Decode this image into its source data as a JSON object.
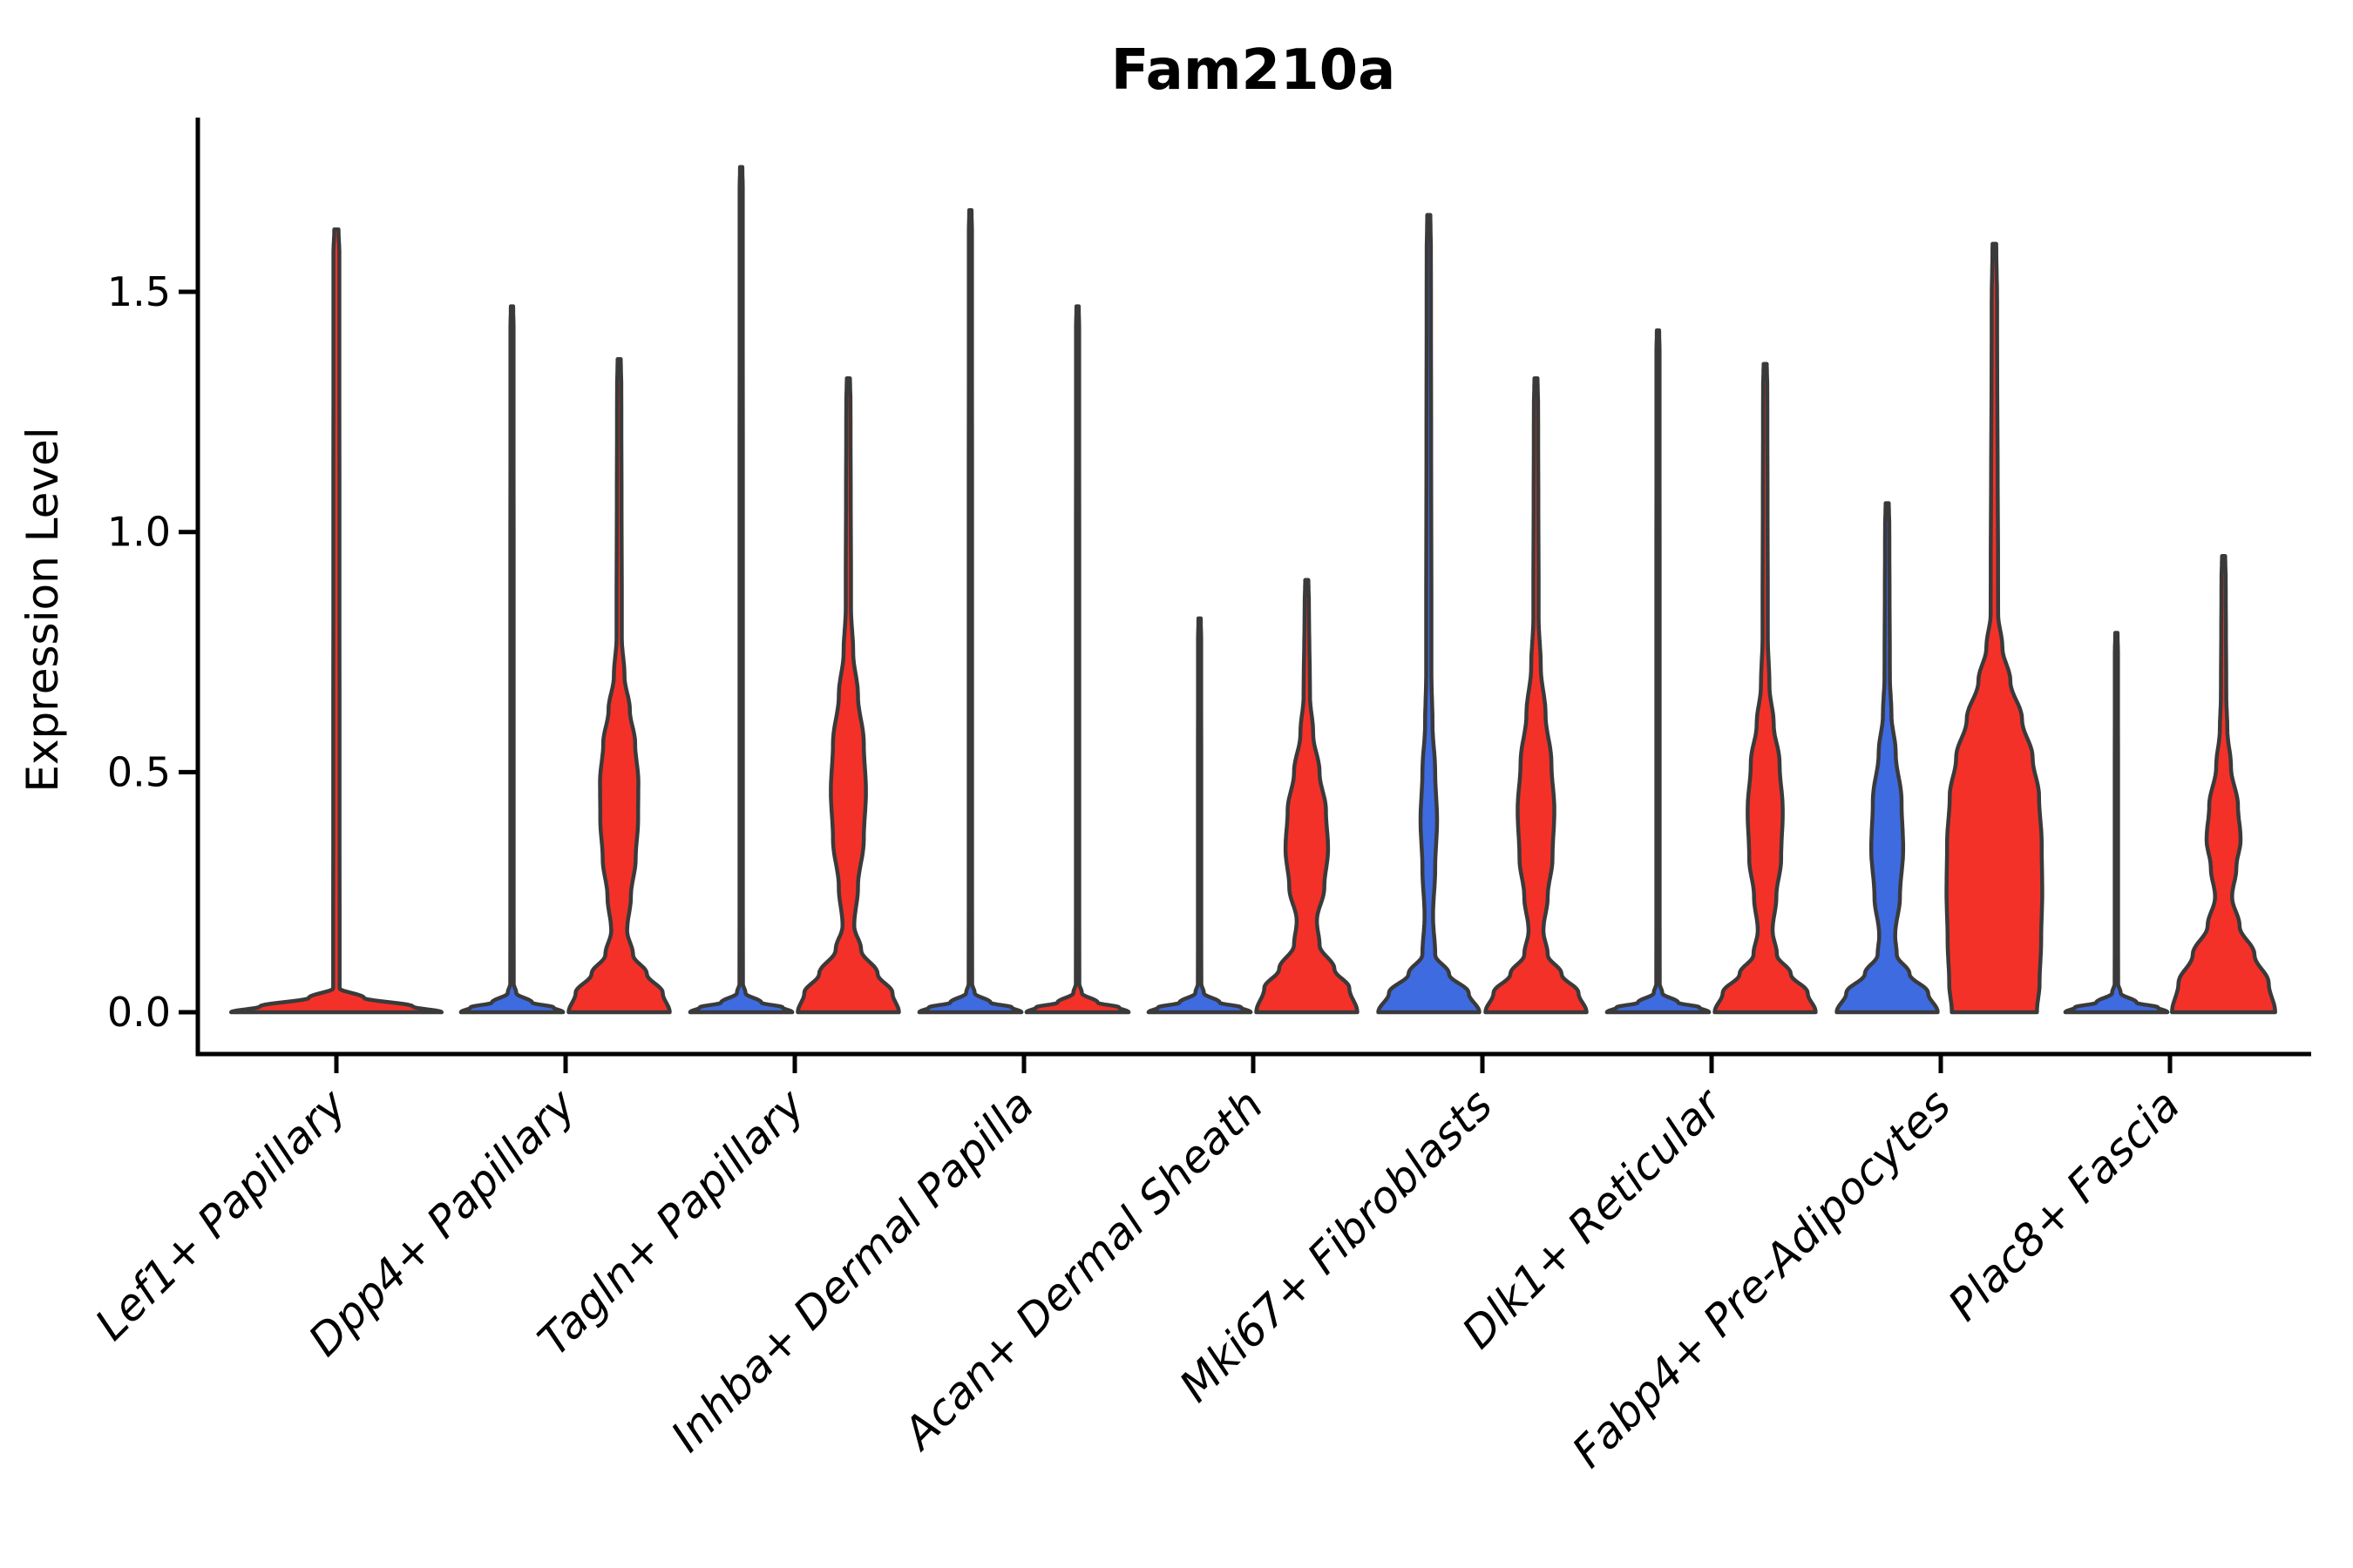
{
  "title": "Fam210a",
  "axes": {
    "ylabel": "Expression Level",
    "ytick_labels": [
      "0.0",
      "0.5",
      "1.0",
      "1.5"
    ]
  },
  "chart_data": {
    "type": "violin",
    "title": "Fam210a",
    "xlabel": "",
    "ylabel": "Expression Level",
    "ylim": [
      -0.09,
      1.86
    ],
    "yticks": [
      0.0,
      0.5,
      1.0,
      1.5
    ],
    "grid": false,
    "legend": "none",
    "colors": {
      "red": "#F33129",
      "blue": "#3F6BE1",
      "outline": "#3A3A3A",
      "axis": "#000000",
      "background": "#FFFFFF"
    },
    "categories": [
      "Lef1+ Papillary",
      "Dpp4+ Papillary",
      "Tagln+ Papillary",
      "Inhba+ Dermal Papilla",
      "Acan+ Dermal Sheath",
      "Mki67+ Fibroblasts",
      "Dlk1+ Reticular",
      "Fabp4+ Pre-Adipocytes",
      "Plac8+ Fascia"
    ],
    "violins": [
      {
        "category_index": 0,
        "category": "Lef1+ Papillary",
        "side": "center",
        "color": "red",
        "width_scale": 2,
        "max_value": 1.63,
        "profile": [
          [
            0,
            0.99
          ],
          [
            0.012,
            0.72
          ],
          [
            0.03,
            0.26
          ],
          [
            0.05,
            0.03
          ],
          [
            1.58,
            0.028
          ],
          [
            1.63,
            0.02
          ]
        ]
      },
      {
        "category_index": 1,
        "category": "Dpp4+ Papillary",
        "side": "left",
        "color": "blue",
        "width_scale": 1,
        "max_value": 1.47,
        "profile": [
          [
            0,
            0.96
          ],
          [
            0.01,
            0.78
          ],
          [
            0.02,
            0.38
          ],
          [
            0.04,
            0.08
          ],
          [
            0.06,
            0.032
          ],
          [
            1.42,
            0.03
          ],
          [
            1.47,
            0.022
          ]
        ]
      },
      {
        "category_index": 1,
        "category": "Dpp4+ Papillary",
        "side": "right",
        "color": "red",
        "width_scale": 1,
        "max_value": 1.36,
        "profile": [
          [
            0,
            0.95
          ],
          [
            0.04,
            0.82
          ],
          [
            0.08,
            0.52
          ],
          [
            0.12,
            0.26
          ],
          [
            0.17,
            0.15
          ],
          [
            0.24,
            0.22
          ],
          [
            0.32,
            0.31
          ],
          [
            0.4,
            0.355
          ],
          [
            0.48,
            0.36
          ],
          [
            0.56,
            0.3
          ],
          [
            0.63,
            0.2
          ],
          [
            0.7,
            0.1
          ],
          [
            0.78,
            0.05
          ],
          [
            1.3,
            0.04
          ],
          [
            1.36,
            0.03
          ]
        ]
      },
      {
        "category_index": 2,
        "category": "Tagln+ Papillary",
        "side": "left",
        "color": "blue",
        "width_scale": 1,
        "max_value": 1.76,
        "profile": [
          [
            0,
            0.96
          ],
          [
            0.01,
            0.78
          ],
          [
            0.02,
            0.38
          ],
          [
            0.04,
            0.08
          ],
          [
            0.06,
            0.032
          ],
          [
            1.71,
            0.03
          ],
          [
            1.76,
            0.022
          ]
        ]
      },
      {
        "category_index": 2,
        "category": "Tagln+ Papillary",
        "side": "right",
        "color": "red",
        "width_scale": 1,
        "max_value": 1.32,
        "profile": [
          [
            0,
            0.95
          ],
          [
            0.04,
            0.83
          ],
          [
            0.08,
            0.55
          ],
          [
            0.13,
            0.24
          ],
          [
            0.18,
            0.11
          ],
          [
            0.26,
            0.18
          ],
          [
            0.36,
            0.29
          ],
          [
            0.46,
            0.33
          ],
          [
            0.56,
            0.29
          ],
          [
            0.66,
            0.18
          ],
          [
            0.75,
            0.09
          ],
          [
            0.84,
            0.05
          ],
          [
            1.27,
            0.04
          ],
          [
            1.32,
            0.03
          ]
        ]
      },
      {
        "category_index": 3,
        "category": "Inhba+ Dermal Papilla",
        "side": "left",
        "color": "blue",
        "width_scale": 1,
        "max_value": 1.67,
        "profile": [
          [
            0,
            0.96
          ],
          [
            0.01,
            0.78
          ],
          [
            0.02,
            0.38
          ],
          [
            0.04,
            0.08
          ],
          [
            0.06,
            0.032
          ],
          [
            1.62,
            0.03
          ],
          [
            1.67,
            0.022
          ]
        ]
      },
      {
        "category_index": 3,
        "category": "Inhba+ Dermal Papilla",
        "side": "right",
        "color": "red",
        "width_scale": 1,
        "max_value": 1.47,
        "profile": [
          [
            0,
            0.96
          ],
          [
            0.01,
            0.78
          ],
          [
            0.02,
            0.38
          ],
          [
            0.04,
            0.08
          ],
          [
            0.06,
            0.032
          ],
          [
            1.42,
            0.03
          ],
          [
            1.47,
            0.022
          ]
        ]
      },
      {
        "category_index": 4,
        "category": "Acan+ Dermal Sheath",
        "side": "left",
        "color": "blue",
        "width_scale": 1,
        "max_value": 0.82,
        "profile": [
          [
            0,
            0.96
          ],
          [
            0.01,
            0.78
          ],
          [
            0.02,
            0.38
          ],
          [
            0.04,
            0.08
          ],
          [
            0.06,
            0.032
          ],
          [
            0.77,
            0.03
          ],
          [
            0.82,
            0.022
          ]
        ]
      },
      {
        "category_index": 4,
        "category": "Acan+ Dermal Sheath",
        "side": "right",
        "color": "red",
        "width_scale": 1,
        "max_value": 0.9,
        "profile": [
          [
            0,
            0.95
          ],
          [
            0.05,
            0.8
          ],
          [
            0.09,
            0.52
          ],
          [
            0.14,
            0.24
          ],
          [
            0.19,
            0.19
          ],
          [
            0.26,
            0.33
          ],
          [
            0.34,
            0.4
          ],
          [
            0.42,
            0.36
          ],
          [
            0.5,
            0.24
          ],
          [
            0.58,
            0.12
          ],
          [
            0.66,
            0.06
          ],
          [
            0.85,
            0.04
          ],
          [
            0.9,
            0.03
          ]
        ]
      },
      {
        "category_index": 5,
        "category": "Mki67+ Fibroblasts",
        "side": "left",
        "color": "blue",
        "width_scale": 1,
        "max_value": 1.66,
        "profile": [
          [
            0,
            0.95
          ],
          [
            0.04,
            0.75
          ],
          [
            0.08,
            0.38
          ],
          [
            0.12,
            0.12
          ],
          [
            0.2,
            0.08
          ],
          [
            0.3,
            0.12
          ],
          [
            0.4,
            0.155
          ],
          [
            0.5,
            0.12
          ],
          [
            0.6,
            0.07
          ],
          [
            0.7,
            0.05
          ],
          [
            1.58,
            0.04
          ],
          [
            1.66,
            0.03
          ]
        ]
      },
      {
        "category_index": 5,
        "category": "Mki67+ Fibroblasts",
        "side": "right",
        "color": "red",
        "width_scale": 1,
        "max_value": 1.32,
        "profile": [
          [
            0,
            0.95
          ],
          [
            0.04,
            0.8
          ],
          [
            0.08,
            0.48
          ],
          [
            0.12,
            0.22
          ],
          [
            0.17,
            0.14
          ],
          [
            0.24,
            0.22
          ],
          [
            0.32,
            0.31
          ],
          [
            0.42,
            0.345
          ],
          [
            0.52,
            0.29
          ],
          [
            0.62,
            0.18
          ],
          [
            0.72,
            0.09
          ],
          [
            0.82,
            0.05
          ],
          [
            1.26,
            0.04
          ],
          [
            1.32,
            0.03
          ]
        ]
      },
      {
        "category_index": 6,
        "category": "Dlk1+ Reticular",
        "side": "left",
        "color": "blue",
        "width_scale": 1,
        "max_value": 1.42,
        "profile": [
          [
            0,
            0.96
          ],
          [
            0.01,
            0.78
          ],
          [
            0.02,
            0.38
          ],
          [
            0.04,
            0.08
          ],
          [
            0.06,
            0.032
          ],
          [
            1.37,
            0.03
          ],
          [
            1.42,
            0.022
          ]
        ]
      },
      {
        "category_index": 6,
        "category": "Dlk1+ Reticular",
        "side": "right",
        "color": "red",
        "width_scale": 1,
        "max_value": 1.35,
        "profile": [
          [
            0,
            0.95
          ],
          [
            0.04,
            0.8
          ],
          [
            0.08,
            0.48
          ],
          [
            0.12,
            0.22
          ],
          [
            0.17,
            0.14
          ],
          [
            0.24,
            0.21
          ],
          [
            0.32,
            0.3
          ],
          [
            0.42,
            0.33
          ],
          [
            0.52,
            0.27
          ],
          [
            0.6,
            0.16
          ],
          [
            0.68,
            0.08
          ],
          [
            0.78,
            0.05
          ],
          [
            1.3,
            0.04
          ],
          [
            1.35,
            0.03
          ]
        ]
      },
      {
        "category_index": 7,
        "category": "Fabp4+ Pre-Adipocytes",
        "side": "left",
        "color": "blue",
        "width_scale": 1,
        "max_value": 1.06,
        "profile": [
          [
            0,
            0.95
          ],
          [
            0.04,
            0.77
          ],
          [
            0.08,
            0.42
          ],
          [
            0.12,
            0.18
          ],
          [
            0.16,
            0.15
          ],
          [
            0.24,
            0.24
          ],
          [
            0.34,
            0.3
          ],
          [
            0.44,
            0.27
          ],
          [
            0.54,
            0.16
          ],
          [
            0.62,
            0.08
          ],
          [
            0.7,
            0.05
          ],
          [
            1.01,
            0.04
          ],
          [
            1.06,
            0.03
          ]
        ]
      },
      {
        "category_index": 7,
        "category": "Fabp4+ Pre-Adipocytes",
        "side": "right",
        "color": "red",
        "width_scale": 1,
        "max_value": 1.6,
        "profile": [
          [
            0,
            0.8
          ],
          [
            0.06,
            0.85
          ],
          [
            0.15,
            0.88
          ],
          [
            0.25,
            0.9
          ],
          [
            0.35,
            0.89
          ],
          [
            0.45,
            0.84
          ],
          [
            0.53,
            0.72
          ],
          [
            0.61,
            0.52
          ],
          [
            0.69,
            0.3
          ],
          [
            0.76,
            0.15
          ],
          [
            0.83,
            0.07
          ],
          [
            1.48,
            0.05
          ],
          [
            1.6,
            0.035
          ]
        ]
      },
      {
        "category_index": 8,
        "category": "Plac8+ Fascia",
        "side": "left",
        "color": "blue",
        "width_scale": 1,
        "max_value": 0.79,
        "profile": [
          [
            0,
            0.96
          ],
          [
            0.01,
            0.78
          ],
          [
            0.02,
            0.38
          ],
          [
            0.04,
            0.08
          ],
          [
            0.06,
            0.032
          ],
          [
            0.74,
            0.03
          ],
          [
            0.79,
            0.022
          ]
        ]
      },
      {
        "category_index": 8,
        "category": "Plac8+ Fascia",
        "side": "right",
        "color": "red",
        "width_scale": 1,
        "max_value": 0.95,
        "profile": [
          [
            0,
            0.97
          ],
          [
            0.06,
            0.85
          ],
          [
            0.12,
            0.58
          ],
          [
            0.18,
            0.3
          ],
          [
            0.24,
            0.16
          ],
          [
            0.3,
            0.24
          ],
          [
            0.36,
            0.32
          ],
          [
            0.43,
            0.27
          ],
          [
            0.51,
            0.14
          ],
          [
            0.59,
            0.07
          ],
          [
            0.66,
            0.05
          ],
          [
            0.9,
            0.04
          ],
          [
            0.95,
            0.03
          ]
        ]
      }
    ]
  }
}
